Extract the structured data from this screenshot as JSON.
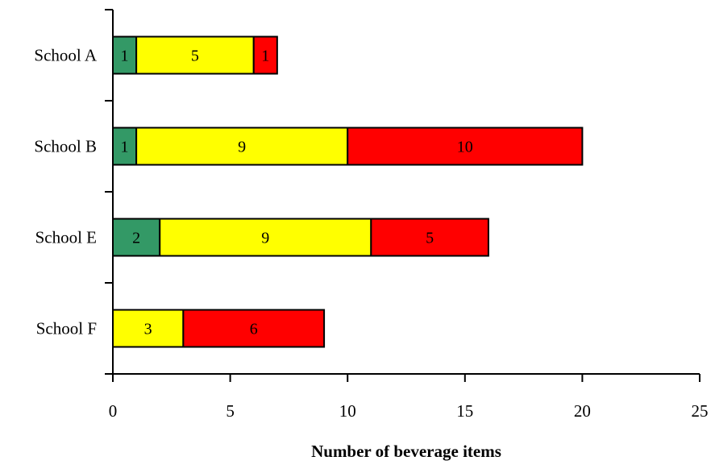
{
  "chart_data": {
    "type": "bar",
    "orientation": "horizontal",
    "stacked": true,
    "title": "",
    "xlabel": "Number of beverage items",
    "ylabel": "",
    "xlim": [
      0,
      25
    ],
    "xticks": [
      0,
      5,
      10,
      15,
      20,
      25
    ],
    "grid": false,
    "legend": "none",
    "categories": [
      "School A",
      "School B",
      "School E",
      "School F"
    ],
    "series": [
      {
        "color": "#339966",
        "values": [
          1,
          1,
          2,
          0
        ]
      },
      {
        "color": "#ffff00",
        "values": [
          5,
          9,
          9,
          3
        ]
      },
      {
        "color": "#ff0000",
        "values": [
          1,
          10,
          5,
          6
        ]
      }
    ]
  }
}
